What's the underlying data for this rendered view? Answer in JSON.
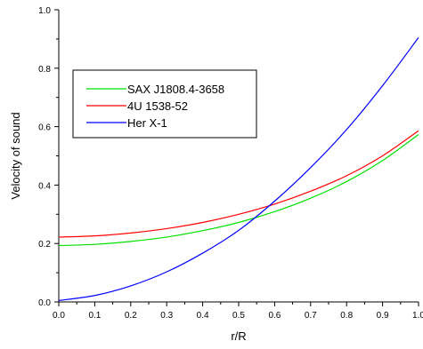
{
  "chart_data": {
    "type": "line",
    "xlabel": "r/R",
    "ylabel": "Velocity of sound",
    "xlim": [
      0.0,
      1.0
    ],
    "ylim": [
      0.0,
      1.0
    ],
    "xticks": [
      "0.0",
      "0.1",
      "0.2",
      "0.3",
      "0.4",
      "0.5",
      "0.6",
      "0.7",
      "0.8",
      "0.9",
      "1.0"
    ],
    "yticks": [
      "0.0",
      "0.2",
      "0.4",
      "0.6",
      "0.8",
      "1.0"
    ],
    "grid": false,
    "legend_position": "upper-left",
    "series": [
      {
        "name": "SAX J1808.4-3658",
        "color": "#00e000",
        "x": [
          0.0,
          0.1,
          0.2,
          0.3,
          0.4,
          0.5,
          0.6,
          0.7,
          0.8,
          0.9,
          1.0
        ],
        "y": [
          0.193,
          0.197,
          0.207,
          0.222,
          0.244,
          0.272,
          0.309,
          0.355,
          0.412,
          0.484,
          0.573
        ]
      },
      {
        "name": "4U 1538-52",
        "color": "#ff0000",
        "x": [
          0.0,
          0.1,
          0.2,
          0.3,
          0.4,
          0.5,
          0.6,
          0.7,
          0.8,
          0.9,
          1.0
        ],
        "y": [
          0.222,
          0.226,
          0.236,
          0.251,
          0.272,
          0.3,
          0.335,
          0.379,
          0.432,
          0.5,
          0.586
        ]
      },
      {
        "name": "Her X-1",
        "color": "#0000ff",
        "x": [
          0.0,
          0.1,
          0.2,
          0.3,
          0.4,
          0.5,
          0.6,
          0.7,
          0.8,
          0.9,
          1.0
        ],
        "y": [
          0.005,
          0.022,
          0.055,
          0.103,
          0.167,
          0.245,
          0.345,
          0.46,
          0.59,
          0.74,
          0.905
        ]
      }
    ]
  }
}
